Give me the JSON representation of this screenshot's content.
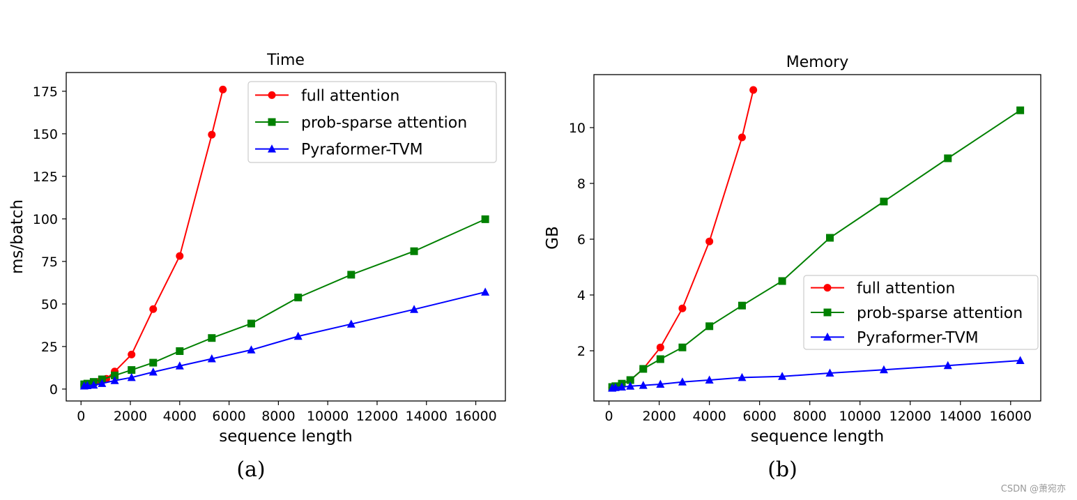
{
  "chart_data": [
    {
      "type": "line",
      "title": "Time",
      "xlabel": "sequence length",
      "ylabel": "ms/batch",
      "xlim": [
        -600,
        17200
      ],
      "ylim": [
        -7,
        186
      ],
      "xticks": [
        0,
        2000,
        4000,
        6000,
        8000,
        10000,
        12000,
        14000,
        16000
      ],
      "yticks": [
        0,
        25,
        50,
        75,
        100,
        125,
        150,
        175
      ],
      "caption": "(a)",
      "legend_position": "top-right",
      "series": [
        {
          "name": "full attention",
          "color": "#ff0000",
          "marker": "circle",
          "x": [
            128,
            256,
            512,
            768,
            1024,
            1365,
            2048,
            2925,
            4000,
            5300,
            5750
          ],
          "y": [
            2.5,
            2.8,
            3.2,
            4.5,
            6.0,
            10.3,
            20.3,
            47.0,
            78.2,
            149.5,
            176.0
          ]
        },
        {
          "name": "prob-sparse attention",
          "color": "#008000",
          "marker": "square",
          "x": [
            128,
            256,
            512,
            850,
            1365,
            2048,
            2925,
            4000,
            5300,
            6900,
            8800,
            10950,
            13500,
            16384
          ],
          "y": [
            2.8,
            3.2,
            4.2,
            5.7,
            8.0,
            11.2,
            15.5,
            22.3,
            30.0,
            38.5,
            53.8,
            67.2,
            81.0,
            99.8
          ]
        },
        {
          "name": "Pyraformer-TVM",
          "color": "#0000ff",
          "marker": "triangle",
          "x": [
            128,
            256,
            512,
            850,
            1365,
            2048,
            2925,
            4000,
            5300,
            6900,
            8800,
            10950,
            13500,
            16384
          ],
          "y": [
            1.8,
            2.0,
            2.3,
            3.3,
            5.0,
            6.8,
            10.0,
            13.6,
            17.8,
            23.0,
            31.0,
            38.2,
            46.8,
            57.0
          ]
        }
      ]
    },
    {
      "type": "line",
      "title": "Memory",
      "xlabel": "sequence length",
      "ylabel": "GB",
      "xlim": [
        -600,
        17200
      ],
      "ylim": [
        0.2,
        11.9
      ],
      "xticks": [
        0,
        2000,
        4000,
        6000,
        8000,
        10000,
        12000,
        14000,
        16000
      ],
      "yticks": [
        2,
        4,
        6,
        8,
        10
      ],
      "caption": "(b)",
      "legend_position": "center-right",
      "series": [
        {
          "name": "full attention",
          "color": "#ff0000",
          "marker": "circle",
          "x": [
            128,
            256,
            512,
            850,
            1365,
            2048,
            2925,
            4000,
            5300,
            5750
          ],
          "y": [
            0.68,
            0.72,
            0.8,
            0.95,
            1.35,
            2.12,
            3.52,
            5.92,
            9.65,
            11.35
          ]
        },
        {
          "name": "prob-sparse attention",
          "color": "#008000",
          "marker": "square",
          "x": [
            128,
            256,
            512,
            850,
            1365,
            2048,
            2925,
            4000,
            5300,
            6900,
            8800,
            10950,
            13500,
            16384
          ],
          "y": [
            0.7,
            0.73,
            0.82,
            0.95,
            1.35,
            1.7,
            2.12,
            2.88,
            3.62,
            4.5,
            6.05,
            7.35,
            8.9,
            10.62
          ]
        },
        {
          "name": "Pyraformer-TVM",
          "color": "#0000ff",
          "marker": "triangle",
          "x": [
            128,
            256,
            512,
            850,
            1365,
            2048,
            2925,
            4000,
            5300,
            6900,
            8800,
            10950,
            13500,
            16384
          ],
          "y": [
            0.66,
            0.68,
            0.7,
            0.73,
            0.76,
            0.8,
            0.88,
            0.95,
            1.04,
            1.08,
            1.2,
            1.32,
            1.47,
            1.65
          ]
        }
      ]
    }
  ],
  "watermark": "CSDN @萧宛亦"
}
